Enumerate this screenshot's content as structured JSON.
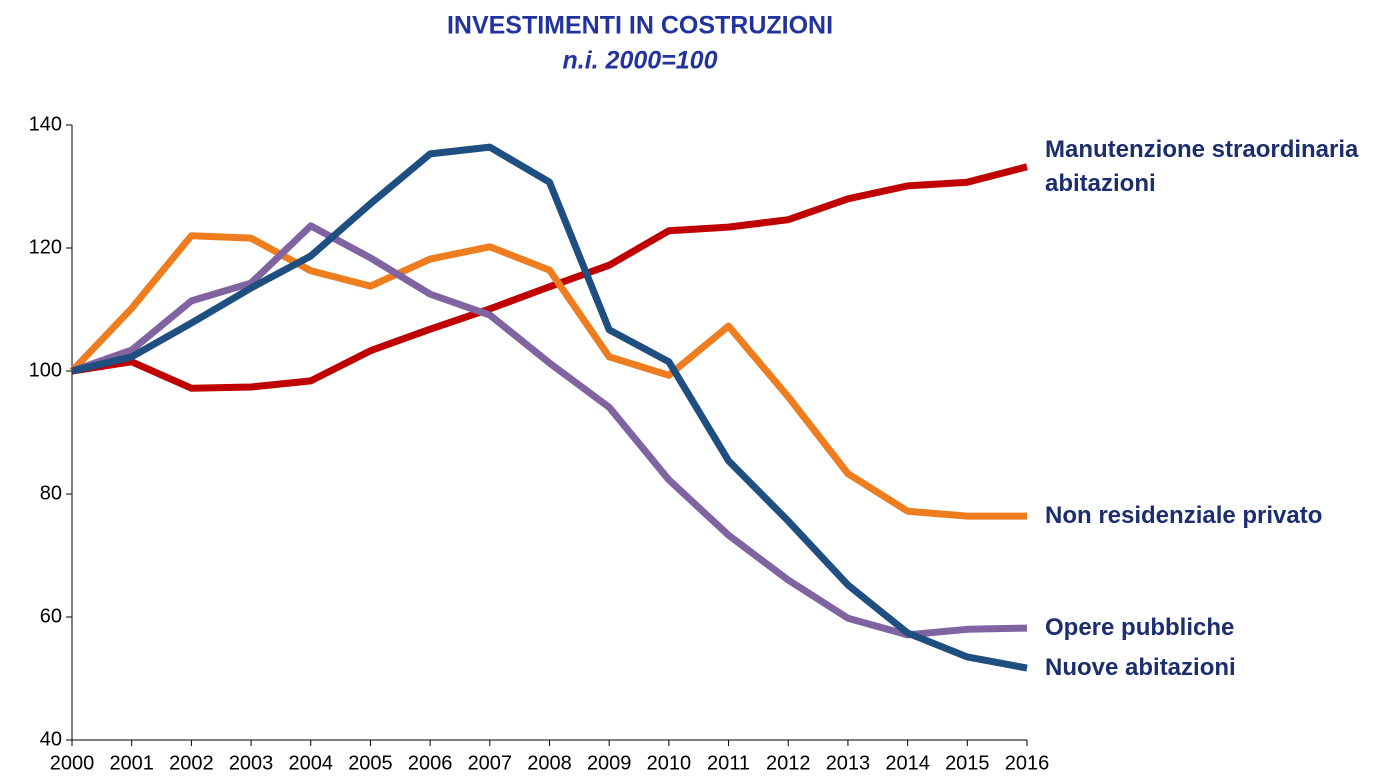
{
  "chart_data": {
    "type": "line",
    "title": "INVESTIMENTI IN COSTRUZIONI",
    "subtitle": "n.i. 2000=100",
    "categories": [
      "2000",
      "2001",
      "2002",
      "2003",
      "2004",
      "2005",
      "2006",
      "2007",
      "2008",
      "2009",
      "2010",
      "2011",
      "2012",
      "2013",
      "2014",
      "2015",
      "2016"
    ],
    "series": [
      {
        "name": "Manutenzione straordinaria abitazioni",
        "color": "#c00000",
        "values": [
          100,
          101.5,
          97.2,
          97.4,
          98.4,
          103.3,
          106.8,
          110.1,
          113.7,
          117.2,
          122.8,
          123.4,
          124.6,
          128,
          130.1,
          130.7,
          133.2
        ]
      },
      {
        "name": "Non residenziale privato",
        "color": "#ee7d1f",
        "values": [
          100,
          110.2,
          122,
          121.6,
          116.3,
          113.8,
          118.2,
          120.2,
          116.4,
          102.3,
          99.3,
          107.3,
          95.8,
          83.3,
          77.2,
          76.4,
          76.4
        ]
      },
      {
        "name": "Opere pubbliche",
        "color": "#8064a2",
        "values": [
          100,
          103.4,
          111.4,
          114.3,
          123.6,
          118.4,
          112.5,
          109.1,
          101.3,
          94.1,
          82.3,
          73.3,
          66,
          59.8,
          57.1,
          58,
          58.2
        ]
      },
      {
        "name": "Nuove abitazioni",
        "color": "#1f4e80",
        "values": [
          100,
          102.3,
          107.8,
          113.5,
          118.7,
          127.2,
          135.3,
          136.4,
          130.7,
          106.7,
          101.5,
          85.4,
          75.6,
          65.2,
          57.4,
          53.5,
          51.7
        ]
      }
    ],
    "label_color": "#1c2e6e",
    "ylim": [
      40,
      140
    ],
    "yticks": [
      40,
      60,
      80,
      100,
      120,
      140
    ],
    "grid": false
  }
}
